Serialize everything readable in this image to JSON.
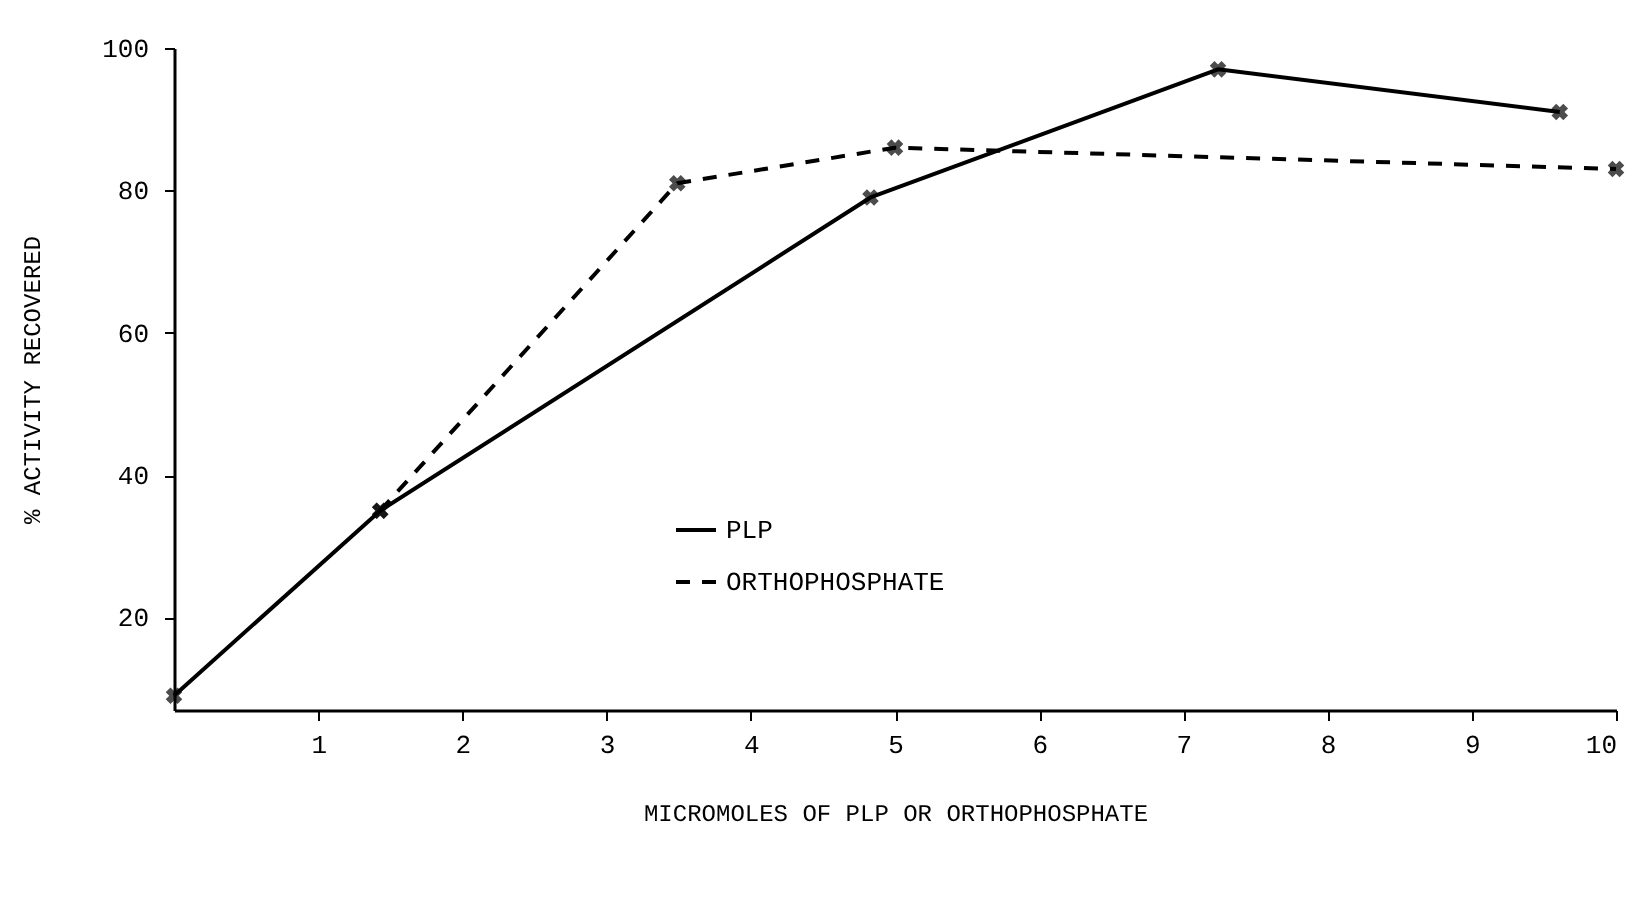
{
  "chart_data": {
    "type": "line",
    "xlabel": "MICROMOLES OF PLP OR ORTHOPHOSPHATE",
    "ylabel": "% ACTIVITY RECOVERED",
    "xlim": [
      0,
      10
    ],
    "xticks": [
      1,
      2,
      3,
      4,
      5,
      6,
      7,
      8,
      9,
      10
    ],
    "ylim": [
      7,
      100
    ],
    "yticks": [
      20,
      40,
      60,
      80,
      100
    ],
    "grid": false,
    "legend": "bottom",
    "marker": "cross",
    "series": [
      {
        "name": "PLP",
        "color": "#000000",
        "line_style": "solid",
        "x": [
          0,
          1.43,
          4.83,
          7.24,
          9.61
        ],
        "values": [
          9,
          35,
          79,
          97,
          91
        ]
      },
      {
        "name": "ORTHOPHOSPHATE",
        "color": "#000000",
        "line_style": "dashed",
        "x": [
          1.43,
          3.49,
          5.0,
          10.0
        ],
        "values": [
          35,
          81,
          86,
          83
        ]
      }
    ]
  }
}
